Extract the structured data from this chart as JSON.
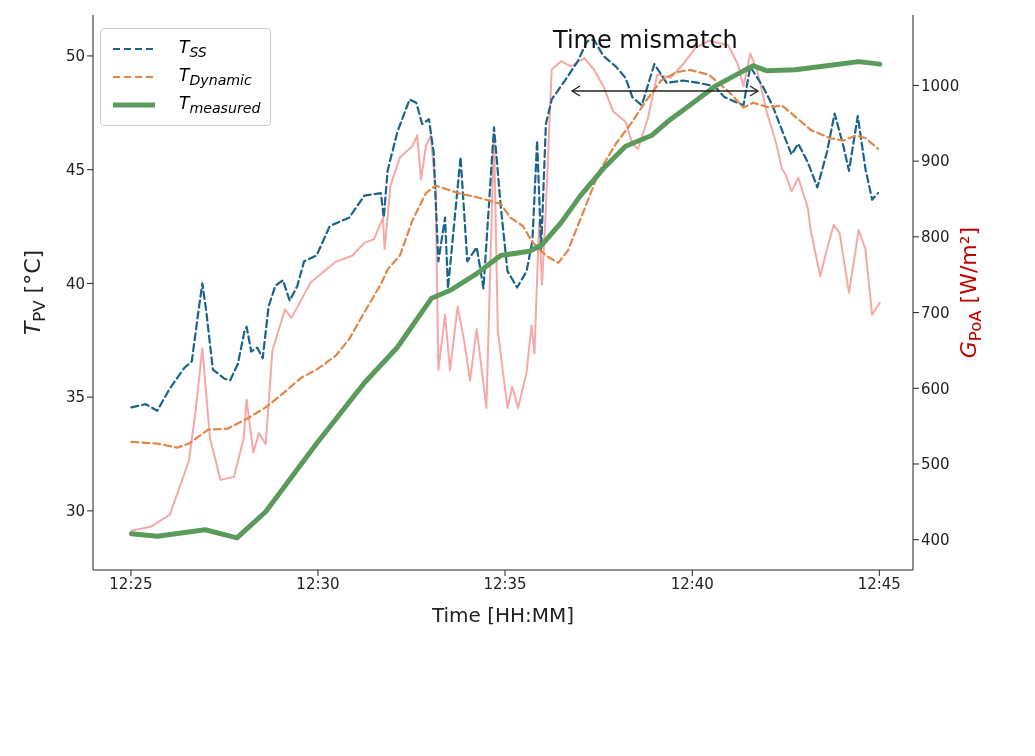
{
  "chart_data": {
    "type": "line",
    "xlabel": "Time [HH:MM]",
    "ylabel": "T$_{PV}$ [°C]",
    "y2label": "G$_{PoA}$ [W/m²]",
    "annotations": [
      "Time mismatch"
    ],
    "xlim": [
      12.3998,
      12.765
    ],
    "xticks": [
      {
        "value": 12.4167,
        "label": "12:25"
      },
      {
        "value": 12.5,
        "label": "12:30"
      },
      {
        "value": 12.5833,
        "label": "12:35"
      },
      {
        "value": 12.6667,
        "label": "12:40"
      },
      {
        "value": 12.75,
        "label": "12:45"
      }
    ],
    "ylim": [
      27.4,
      51.8
    ],
    "yticks": [
      30,
      35,
      40,
      45,
      50
    ],
    "y2lim": [
      360,
      1093
    ],
    "y2ticks": [
      400,
      500,
      600,
      700,
      800,
      900,
      1000
    ],
    "grid": false,
    "legend": "top left",
    "marker": "none",
    "series": [
      {
        "color": "#f4a9a8",
        "axis": "y2",
        "line_style": "solid",
        "x": [
          12.4169,
          12.4254,
          12.434,
          12.4382,
          12.4425,
          12.4455,
          12.4485,
          12.4519,
          12.4566,
          12.4626,
          12.4669,
          12.4682,
          12.4712,
          12.4737,
          12.4767,
          12.4797,
          12.4853,
          12.4882,
          12.4968,
          12.5079,
          12.5152,
          12.5207,
          12.525,
          12.5289,
          12.5297,
          12.5323,
          12.5365,
          12.5421,
          12.5442,
          12.5459,
          12.5481,
          12.5502,
          12.5524,
          12.5536,
          12.5566,
          12.5588,
          12.5622,
          12.5652,
          12.5677,
          12.5707,
          12.575,
          12.5784,
          12.5801,
          12.5844,
          12.5865,
          12.5891,
          12.5929,
          12.5951,
          12.5964,
          12.5985,
          12.5998,
          12.6015,
          12.6041,
          12.6083,
          12.6126,
          12.6186,
          12.6229,
          12.6271,
          12.6314,
          12.637,
          12.64,
          12.6425,
          12.6468,
          12.6511,
          12.6571,
          12.6626,
          12.6682,
          12.6741,
          12.6827,
          12.687,
          12.6895,
          12.6925,
          12.6955,
          12.6998,
          12.7041,
          12.7066,
          12.7083,
          12.7109,
          12.7139,
          12.7182,
          12.7194,
          12.7237,
          12.7267,
          12.7297,
          12.7323,
          12.7365,
          12.7408,
          12.7438,
          12.7468,
          12.7502
        ],
        "values": [
          412,
          417,
          433,
          468,
          504,
          570,
          653,
          534,
          479,
          483,
          534,
          585,
          515,
          541,
          526,
          650,
          704,
          693,
          740,
          767,
          775,
          792,
          797,
          825,
          784,
          868,
          905,
          920,
          934,
          876,
          920,
          934,
          862,
          624,
          697,
          624,
          708,
          661,
          610,
          678,
          574,
          936,
          675,
          574,
          602,
          574,
          621,
          683,
          646,
          820,
          737,
          838,
          1021,
          1032,
          1025,
          1036,
          1021,
          999,
          966,
          952,
          923,
          916,
          955,
          1014,
          1010,
          1028,
          1050,
          1059,
          1053,
          1028,
          999,
          1042,
          1021,
          966,
          923,
          890,
          882,
          860,
          878,
          838,
          809,
          748,
          784,
          816,
          805,
          726,
          809,
          784,
          697,
          713
        ]
      },
      {
        "name": "T$_{SS}$",
        "color": "#1b6489",
        "line_style": "dashed",
        "x": [
          12.4169,
          12.4233,
          12.4284,
          12.434,
          12.4404,
          12.4438,
          12.4468,
          12.4485,
          12.4502,
          12.4532,
          12.4583,
          12.4609,
          12.4643,
          12.4673,
          12.4682,
          12.4703,
          12.4729,
          12.4754,
          12.478,
          12.481,
          12.4844,
          12.4874,
          12.4908,
          12.4938,
          12.4994,
          12.5053,
          12.5139,
          12.5207,
          12.528,
          12.5293,
          12.531,
          12.5353,
          12.5408,
          12.5438,
          12.5464,
          12.5494,
          12.5515,
          12.5536,
          12.5566,
          12.5579,
          12.5635,
          12.5665,
          12.5707,
          12.5737,
          12.5784,
          12.5814,
          12.5844,
          12.5887,
          12.5929,
          12.5955,
          12.5976,
          12.5994,
          12.6015,
          12.6041,
          12.61,
          12.6156,
          12.6199,
          12.6229,
          12.6271,
          12.6327,
          12.637,
          12.64,
          12.6442,
          12.6498,
          12.6553,
          12.6626,
          12.6699,
          12.6767,
          12.681,
          12.6895,
          12.6925,
          12.6981,
          12.7024,
          12.7066,
          12.7109,
          12.7139,
          12.7182,
          12.7224,
          12.7267,
          12.7301,
          12.734,
          12.7365,
          12.7404,
          12.7438,
          12.7468,
          12.7494
        ],
        "values": [
          34.55,
          34.69,
          34.4,
          35.38,
          36.28,
          36.57,
          38.81,
          40.0,
          38.81,
          36.21,
          35.81,
          35.74,
          36.46,
          37.91,
          38.09,
          37.0,
          37.18,
          36.71,
          38.99,
          39.89,
          40.14,
          39.24,
          39.89,
          40.97,
          41.23,
          42.53,
          42.89,
          43.86,
          43.97,
          42.89,
          44.95,
          46.64,
          48.09,
          47.94,
          47.0,
          47.22,
          45.78,
          40.97,
          42.89,
          39.78,
          45.56,
          40.97,
          41.59,
          39.78,
          46.86,
          43.39,
          40.54,
          39.82,
          40.54,
          41.88,
          46.28,
          41.52,
          47.0,
          48.09,
          48.92,
          49.75,
          50.65,
          50.72,
          50.0,
          49.53,
          49.03,
          48.19,
          47.83,
          49.64,
          48.81,
          48.92,
          48.81,
          48.66,
          48.19,
          47.83,
          49.53,
          48.66,
          47.83,
          46.75,
          45.67,
          46.14,
          45.31,
          44.22,
          45.78,
          47.47,
          46.03,
          44.95,
          47.36,
          45.05,
          43.68,
          43.97
        ]
      },
      {
        "name": "T$_{Dynamic}$",
        "color": "#e0884a",
        "line_style": "dashed",
        "x": [
          12.4169,
          12.4284,
          12.4374,
          12.4425,
          12.4511,
          12.4596,
          12.4682,
          12.4767,
          12.484,
          12.4925,
          12.4994,
          12.5079,
          12.5139,
          12.5207,
          12.528,
          12.531,
          12.5365,
          12.5421,
          12.5481,
          12.5524,
          12.5635,
          12.5707,
          12.5814,
          12.5857,
          12.5912,
          12.5955,
          12.6015,
          12.607,
          12.6113,
          12.6186,
          12.6254,
          12.6327,
          12.64,
          12.6455,
          12.6528,
          12.6596,
          12.6656,
          12.6741,
          12.6827,
          12.6895,
          12.6938,
          12.7011,
          12.7066,
          12.7139,
          12.7194,
          12.728,
          12.734,
          12.7395,
          12.7438,
          12.7494
        ],
        "values": [
          33.03,
          32.96,
          32.78,
          32.96,
          33.57,
          33.61,
          34.04,
          34.55,
          35.13,
          35.85,
          36.21,
          36.82,
          37.55,
          38.74,
          39.96,
          40.61,
          41.23,
          42.78,
          43.97,
          44.3,
          43.94,
          43.79,
          43.5,
          42.89,
          42.53,
          41.81,
          41.23,
          40.9,
          41.44,
          43.25,
          44.95,
          46.14,
          47.11,
          47.94,
          48.92,
          49.28,
          49.39,
          49.17,
          48.45,
          47.73,
          47.94,
          47.73,
          47.83,
          47.22,
          46.75,
          46.39,
          46.28,
          46.5,
          46.39,
          45.92
        ]
      },
      {
        "name": "T$_{measured}$",
        "color": "#5a9a5a",
        "line_style": "solid",
        "x": [
          12.4169,
          12.4284,
          12.4498,
          12.4639,
          12.4767,
          12.4994,
          12.5207,
          12.5353,
          12.5506,
          12.5592,
          12.5707,
          12.5814,
          12.5942,
          12.5998,
          12.6083,
          12.6169,
          12.6271,
          12.637,
          12.6485,
          12.6571,
          12.6656,
          12.6767,
          12.687,
          12.6938,
          12.6998,
          12.7126,
          12.7267,
          12.7408,
          12.7502
        ],
        "values": [
          28.99,
          28.88,
          29.17,
          28.81,
          29.96,
          32.96,
          35.63,
          37.18,
          39.35,
          39.71,
          40.43,
          41.23,
          41.41,
          41.7,
          42.67,
          43.86,
          45.05,
          46.03,
          46.5,
          47.22,
          47.83,
          48.66,
          49.21,
          49.57,
          49.35,
          49.39,
          49.57,
          49.75,
          49.64
        ]
      }
    ]
  }
}
